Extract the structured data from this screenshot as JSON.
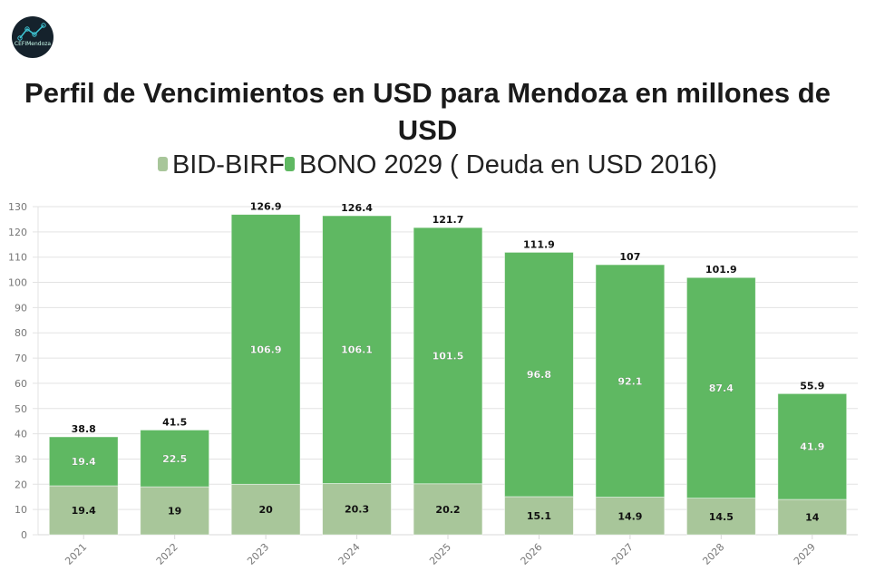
{
  "logo": {
    "icon": "line-chart-logo-icon",
    "text": "CEFIMendoza"
  },
  "chart_data": {
    "type": "bar",
    "stacked": true,
    "title": "Perfil de Vencimientos en USD para Mendoza en millones de USD",
    "title_lines": [
      "Perfil de Vencimientos en USD para Mendoza en millones de",
      "USD"
    ],
    "xlabel": "",
    "ylabel": "",
    "categories": [
      "2021",
      "2022",
      "2023",
      "2024",
      "2025",
      "2026",
      "2027",
      "2028",
      "2029"
    ],
    "series": [
      {
        "name": "BID-BIRF",
        "color": "#a8c69a",
        "label_color": "#111111",
        "values": [
          19.4,
          19,
          20,
          20.3,
          20.2,
          15.1,
          14.9,
          14.5,
          14
        ]
      },
      {
        "name": "BONO 2029 ( Deuda en USD 2016)",
        "color": "#5fb862",
        "label_color": "#ffffff",
        "values": [
          19.4,
          22.5,
          106.9,
          106.1,
          101.5,
          96.8,
          92.1,
          87.4,
          41.9
        ]
      }
    ],
    "totals": [
      38.8,
      41.5,
      126.9,
      126.4,
      121.7,
      111.9,
      107,
      101.9,
      55.9
    ],
    "ylim": [
      0,
      130
    ],
    "yticks": [
      0,
      10,
      20,
      30,
      40,
      50,
      60,
      70,
      80,
      90,
      100,
      110,
      120,
      130
    ],
    "grid": true,
    "legend_position": "top-center",
    "xtick_rotation": -45
  }
}
